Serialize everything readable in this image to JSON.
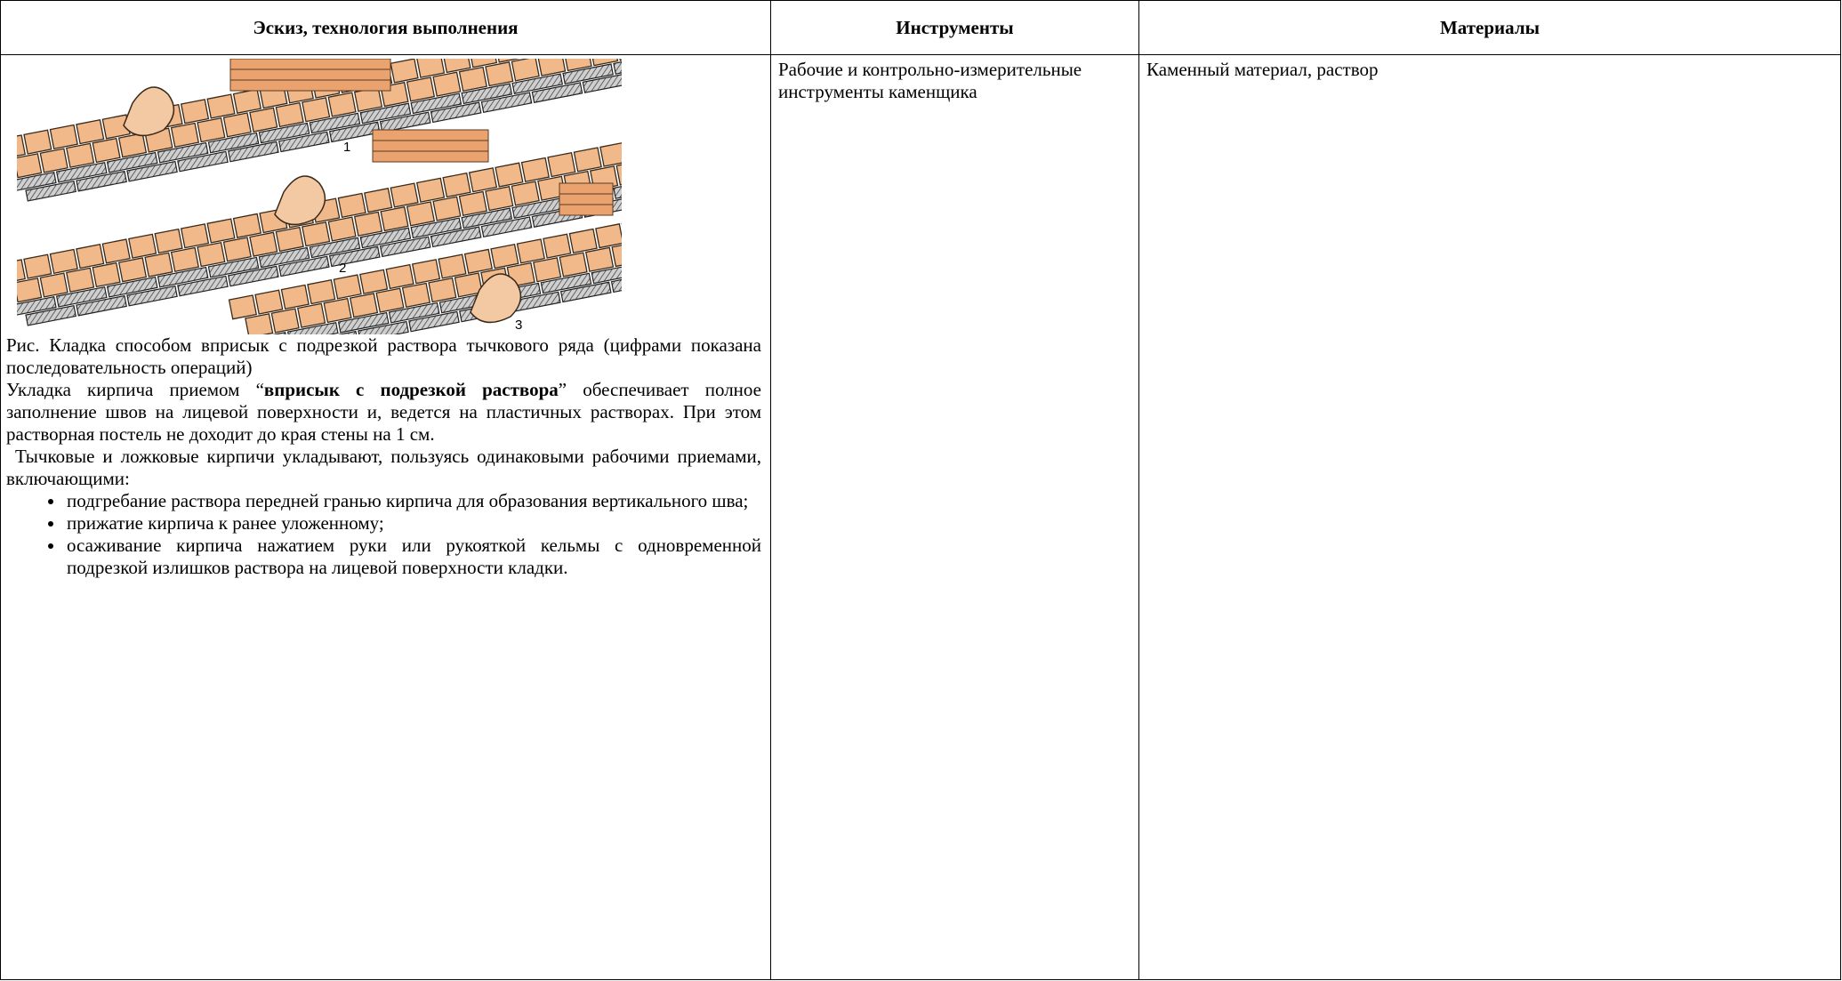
{
  "table": {
    "headers": [
      "Эскиз, технология выполнения",
      "Инструменты",
      "Материалы"
    ],
    "sketch": {
      "figure_labels": [
        "1",
        "2",
        "3"
      ],
      "caption": "Рис. Кладка способом вприсык с подрезкой раствора тычкового ряда (цифрами показана последовательность операций)",
      "paragraph1": {
        "before": "Укладка кирпича приемом “",
        "bold": "вприсык с подрезкой раствора",
        "after": "” обеспечивает полное заполнение швов на лицевой поверхности и, ведется на пластичных растворах. При этом растворная постель не доходит до края стены на 1 см."
      },
      "paragraph2": "Тычковые и ложковые кирпичи укладывают, пользуясь одинаковыми рабочими приемами, включающими:",
      "list": [
        "подгребание раствора передней гранью кирпича для образования вертикального шва;",
        "прижатие кирпича к ранее уложенному;",
        "осаживание кирпича нажатием руки или рукояткой кельмы с одновременной подрезкой излишков раствора на лицевой поверхности кладки."
      ]
    },
    "tools": "Рабочие и контрольно-измерительные инструменты каменщика",
    "materials": "Каменный материал, раствор"
  }
}
